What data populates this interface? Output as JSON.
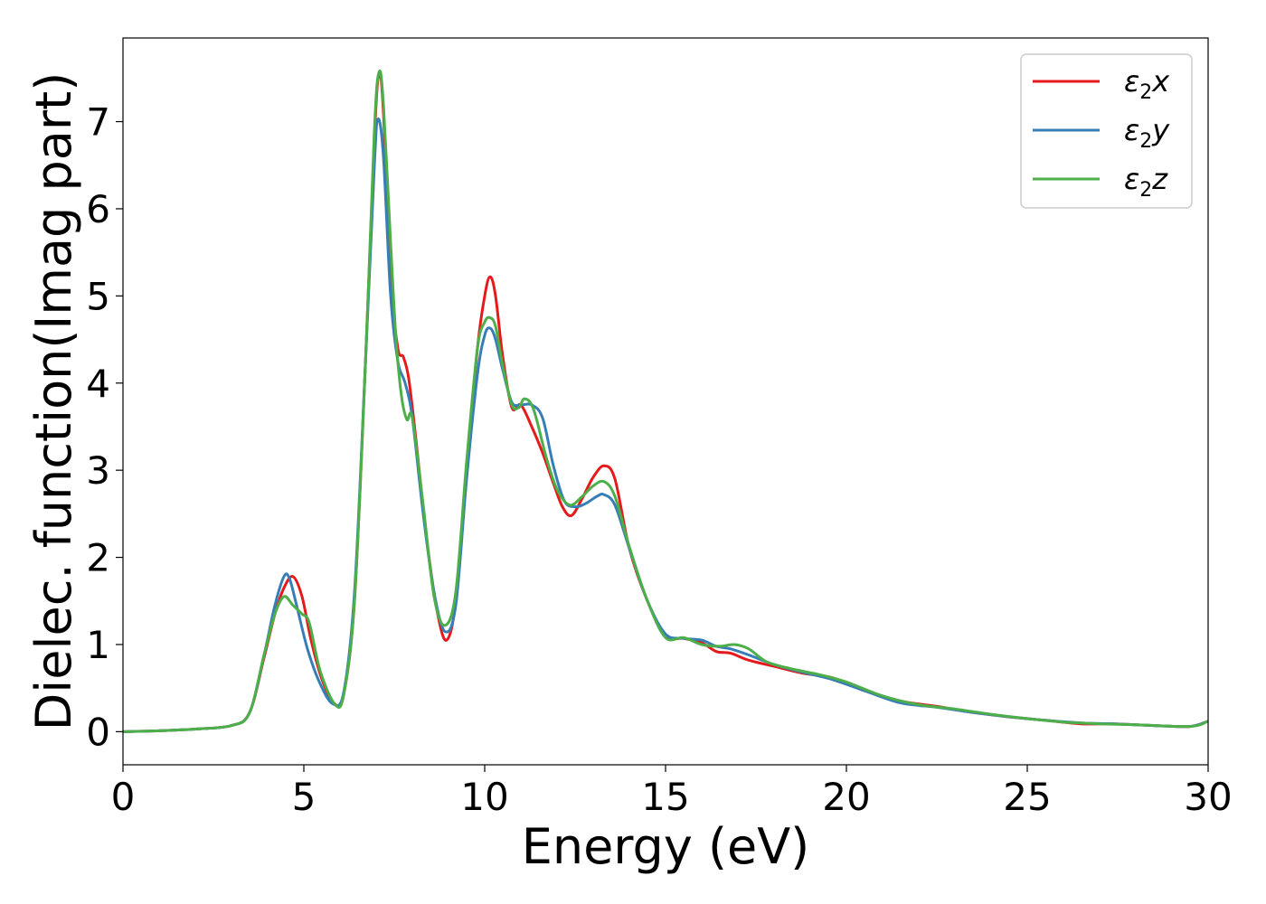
{
  "chart_data": {
    "type": "line",
    "title": "",
    "xlabel": "Energy (eV)",
    "ylabel": "Dielec. function(Imag part)",
    "xlim": [
      0,
      30
    ],
    "ylim": [
      -0.38,
      7.96
    ],
    "xticks": [
      0,
      5,
      10,
      15,
      20,
      25,
      30
    ],
    "yticks": [
      0,
      1,
      2,
      3,
      4,
      5,
      6,
      7
    ],
    "grid": false,
    "legend_position": "top-right",
    "series": [
      {
        "name": "ε2x",
        "legend": {
          "base": "ε",
          "sub": "2",
          "suffix": "x"
        },
        "color": "#e41a1c",
        "points": [
          [
            0,
            0.0
          ],
          [
            1,
            0.01
          ],
          [
            2,
            0.03
          ],
          [
            3,
            0.07
          ],
          [
            3.5,
            0.22
          ],
          [
            3.9,
            0.85
          ],
          [
            4.2,
            1.35
          ],
          [
            4.45,
            1.65
          ],
          [
            4.7,
            1.78
          ],
          [
            4.95,
            1.55
          ],
          [
            5.2,
            1.05
          ],
          [
            5.5,
            0.6
          ],
          [
            5.85,
            0.32
          ],
          [
            6.1,
            0.42
          ],
          [
            6.4,
            1.5
          ],
          [
            6.7,
            4.2
          ],
          [
            6.95,
            6.8
          ],
          [
            7.08,
            7.55
          ],
          [
            7.2,
            7.1
          ],
          [
            7.4,
            5.2
          ],
          [
            7.6,
            4.4
          ],
          [
            7.75,
            4.3
          ],
          [
            7.9,
            4.05
          ],
          [
            8.1,
            3.35
          ],
          [
            8.4,
            2.2
          ],
          [
            8.7,
            1.35
          ],
          [
            8.95,
            1.05
          ],
          [
            9.2,
            1.5
          ],
          [
            9.5,
            3.0
          ],
          [
            9.8,
            4.4
          ],
          [
            10.0,
            5.0
          ],
          [
            10.15,
            5.22
          ],
          [
            10.3,
            5.0
          ],
          [
            10.5,
            4.3
          ],
          [
            10.75,
            3.72
          ],
          [
            11.0,
            3.75
          ],
          [
            11.3,
            3.5
          ],
          [
            11.6,
            3.2
          ],
          [
            11.9,
            2.85
          ],
          [
            12.15,
            2.58
          ],
          [
            12.4,
            2.48
          ],
          [
            12.7,
            2.68
          ],
          [
            13.0,
            2.92
          ],
          [
            13.3,
            3.05
          ],
          [
            13.6,
            2.9
          ],
          [
            14.0,
            2.1
          ],
          [
            14.5,
            1.5
          ],
          [
            15.0,
            1.1
          ],
          [
            15.5,
            1.07
          ],
          [
            16.0,
            1.02
          ],
          [
            16.4,
            0.92
          ],
          [
            16.8,
            0.9
          ],
          [
            17.3,
            0.82
          ],
          [
            18.0,
            0.75
          ],
          [
            18.8,
            0.67
          ],
          [
            19.6,
            0.62
          ],
          [
            20.5,
            0.47
          ],
          [
            21.5,
            0.35
          ],
          [
            22.5,
            0.29
          ],
          [
            23.5,
            0.22
          ],
          [
            24.5,
            0.17
          ],
          [
            25.5,
            0.13
          ],
          [
            26.5,
            0.09
          ],
          [
            27.4,
            0.09
          ],
          [
            28.5,
            0.07
          ],
          [
            29.5,
            0.06
          ],
          [
            30.0,
            0.12
          ]
        ]
      },
      {
        "name": "ε2y",
        "legend": {
          "base": "ε",
          "sub": "2",
          "suffix": "y"
        },
        "color": "#377eb8",
        "points": [
          [
            0,
            0.0
          ],
          [
            1,
            0.01
          ],
          [
            2,
            0.03
          ],
          [
            3,
            0.07
          ],
          [
            3.5,
            0.22
          ],
          [
            3.9,
            0.88
          ],
          [
            4.2,
            1.45
          ],
          [
            4.45,
            1.78
          ],
          [
            4.6,
            1.76
          ],
          [
            4.8,
            1.45
          ],
          [
            5.1,
            0.95
          ],
          [
            5.45,
            0.55
          ],
          [
            5.8,
            0.32
          ],
          [
            6.1,
            0.45
          ],
          [
            6.4,
            1.6
          ],
          [
            6.7,
            4.2
          ],
          [
            6.95,
            6.5
          ],
          [
            7.05,
            7.03
          ],
          [
            7.2,
            6.6
          ],
          [
            7.4,
            5.0
          ],
          [
            7.6,
            4.25
          ],
          [
            7.8,
            4.0
          ],
          [
            8.0,
            3.6
          ],
          [
            8.3,
            2.5
          ],
          [
            8.6,
            1.6
          ],
          [
            8.9,
            1.15
          ],
          [
            9.2,
            1.45
          ],
          [
            9.5,
            2.9
          ],
          [
            9.8,
            4.1
          ],
          [
            10.0,
            4.55
          ],
          [
            10.15,
            4.63
          ],
          [
            10.3,
            4.5
          ],
          [
            10.5,
            4.15
          ],
          [
            10.75,
            3.78
          ],
          [
            11.0,
            3.75
          ],
          [
            11.3,
            3.75
          ],
          [
            11.6,
            3.6
          ],
          [
            11.9,
            3.05
          ],
          [
            12.2,
            2.65
          ],
          [
            12.5,
            2.58
          ],
          [
            12.8,
            2.62
          ],
          [
            13.1,
            2.7
          ],
          [
            13.3,
            2.72
          ],
          [
            13.6,
            2.6
          ],
          [
            14.0,
            2.1
          ],
          [
            14.5,
            1.5
          ],
          [
            15.0,
            1.12
          ],
          [
            15.5,
            1.07
          ],
          [
            16.0,
            1.05
          ],
          [
            16.4,
            0.98
          ],
          [
            16.8,
            0.95
          ],
          [
            17.3,
            0.88
          ],
          [
            18.0,
            0.77
          ],
          [
            18.8,
            0.68
          ],
          [
            19.6,
            0.6
          ],
          [
            20.5,
            0.47
          ],
          [
            21.5,
            0.33
          ],
          [
            22.5,
            0.28
          ],
          [
            23.5,
            0.22
          ],
          [
            24.5,
            0.17
          ],
          [
            25.5,
            0.13
          ],
          [
            26.5,
            0.1
          ],
          [
            27.4,
            0.09
          ],
          [
            28.5,
            0.07
          ],
          [
            29.5,
            0.06
          ],
          [
            30.0,
            0.12
          ]
        ]
      },
      {
        "name": "ε2z",
        "legend": {
          "base": "ε",
          "sub": "2",
          "suffix": "z"
        },
        "color": "#4daf4a",
        "points": [
          [
            0,
            0.0
          ],
          [
            1,
            0.01
          ],
          [
            2,
            0.03
          ],
          [
            3,
            0.07
          ],
          [
            3.5,
            0.22
          ],
          [
            3.9,
            0.88
          ],
          [
            4.2,
            1.35
          ],
          [
            4.45,
            1.55
          ],
          [
            4.7,
            1.45
          ],
          [
            4.95,
            1.35
          ],
          [
            5.15,
            1.25
          ],
          [
            5.45,
            0.7
          ],
          [
            5.85,
            0.32
          ],
          [
            6.1,
            0.42
          ],
          [
            6.4,
            1.5
          ],
          [
            6.7,
            4.2
          ],
          [
            6.95,
            6.9
          ],
          [
            7.08,
            7.57
          ],
          [
            7.2,
            7.2
          ],
          [
            7.4,
            5.6
          ],
          [
            7.55,
            4.5
          ],
          [
            7.7,
            3.85
          ],
          [
            7.85,
            3.58
          ],
          [
            8.0,
            3.6
          ],
          [
            8.3,
            2.6
          ],
          [
            8.6,
            1.55
          ],
          [
            8.9,
            1.22
          ],
          [
            9.2,
            1.6
          ],
          [
            9.5,
            3.1
          ],
          [
            9.8,
            4.4
          ],
          [
            10.0,
            4.7
          ],
          [
            10.15,
            4.75
          ],
          [
            10.3,
            4.65
          ],
          [
            10.5,
            4.2
          ],
          [
            10.75,
            3.75
          ],
          [
            10.95,
            3.72
          ],
          [
            11.1,
            3.82
          ],
          [
            11.35,
            3.7
          ],
          [
            11.7,
            3.15
          ],
          [
            12.0,
            2.78
          ],
          [
            12.35,
            2.6
          ],
          [
            12.7,
            2.7
          ],
          [
            13.0,
            2.82
          ],
          [
            13.3,
            2.87
          ],
          [
            13.6,
            2.7
          ],
          [
            14.0,
            2.12
          ],
          [
            14.5,
            1.5
          ],
          [
            15.0,
            1.08
          ],
          [
            15.5,
            1.08
          ],
          [
            16.0,
            1.0
          ],
          [
            16.5,
            0.98
          ],
          [
            16.9,
            1.0
          ],
          [
            17.3,
            0.95
          ],
          [
            17.8,
            0.8
          ],
          [
            18.5,
            0.72
          ],
          [
            19.3,
            0.65
          ],
          [
            20.0,
            0.57
          ],
          [
            21.0,
            0.41
          ],
          [
            22.0,
            0.31
          ],
          [
            23.0,
            0.26
          ],
          [
            24.0,
            0.2
          ],
          [
            25.0,
            0.15
          ],
          [
            26.0,
            0.11
          ],
          [
            27.0,
            0.09
          ],
          [
            28.0,
            0.08
          ],
          [
            29.5,
            0.06
          ],
          [
            30.0,
            0.12
          ]
        ]
      }
    ]
  }
}
